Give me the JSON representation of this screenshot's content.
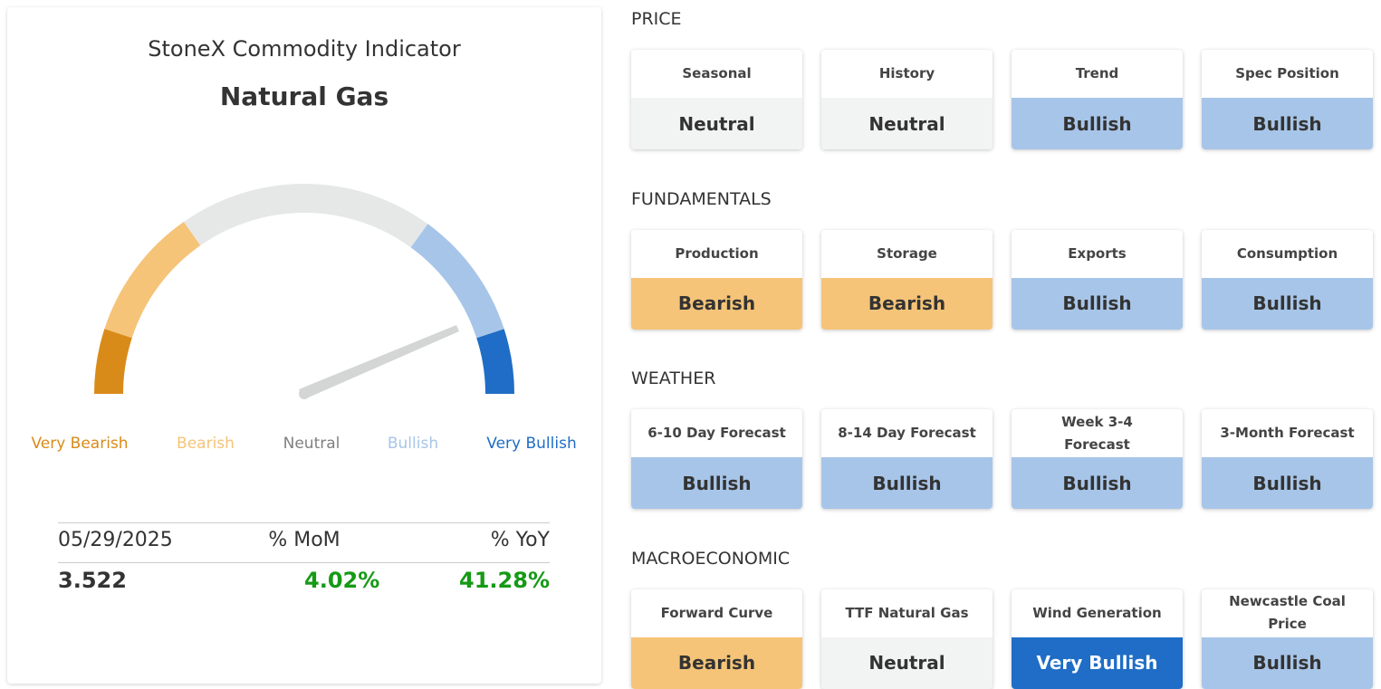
{
  "header": {
    "subtitle": "StoneX Commodity Indicator",
    "title": "Natural Gas"
  },
  "gauge": [
    {
      "label": "Very Bearish",
      "color": "#d98b1a",
      "label_color": "#d98b1a"
    },
    {
      "label": "Bearish",
      "color": "#f5c478",
      "label_color": "#f5c478"
    },
    {
      "label": "Neutral",
      "color": "#e6e8e7",
      "label_color": "#808080"
    },
    {
      "label": "Bullish",
      "color": "#a7c5e8",
      "label_color": "#a7c5e8"
    },
    {
      "label": "Very Bullish",
      "color": "#1f6dc6",
      "label_color": "#1f6dc6"
    }
  ],
  "summary": {
    "headers": [
      "05/29/2025",
      "% MoM",
      "% YoY"
    ],
    "values": [
      "3.522",
      "4.02%",
      "41.28%"
    ]
  },
  "sections": [
    {
      "title": "PRICE",
      "cards": [
        {
          "label": "Seasonal",
          "status": "Neutral",
          "color": "#f2f3f3"
        },
        {
          "label": "History",
          "status": "Neutral",
          "color": "#f2f3f3"
        },
        {
          "label": "Trend",
          "status": "Bullish",
          "color": "#a7c5e8"
        },
        {
          "label": "Spec Position",
          "status": "Bullish",
          "color": "#a7c5e8"
        }
      ]
    },
    {
      "title": "FUNDAMENTALS",
      "cards": [
        {
          "label": "Production",
          "status": "Bearish",
          "color": "#f5c478"
        },
        {
          "label": "Storage",
          "status": "Bearish",
          "color": "#f5c478"
        },
        {
          "label": "Exports",
          "status": "Bullish",
          "color": "#a7c5e8"
        },
        {
          "label": "Consumption",
          "status": "Bullish",
          "color": "#a7c5e8"
        }
      ]
    },
    {
      "title": "WEATHER",
      "cards": [
        {
          "label": "6-10 Day Forecast",
          "status": "Bullish",
          "color": "#a7c5e8"
        },
        {
          "label": "8-14 Day Forecast",
          "status": "Bullish",
          "color": "#a7c5e8"
        },
        {
          "label": "Week 3-4 Forecast",
          "status": "Bullish",
          "color": "#a7c5e8"
        },
        {
          "label": "3-Month Forecast",
          "status": "Bullish",
          "color": "#a7c5e8"
        }
      ]
    },
    {
      "title": "MACROECONOMIC",
      "cards": [
        {
          "label": "Forward Curve",
          "status": "Bearish",
          "color": "#f5c478"
        },
        {
          "label": "TTF Natural Gas",
          "status": "Neutral",
          "color": "#f2f3f3"
        },
        {
          "label": "Wind Generation",
          "status": "Very Bullish",
          "color": "#1f6dc6"
        },
        {
          "label": "Newcastle Coal Price",
          "status": "Bullish",
          "color": "#a7c5e8"
        }
      ]
    }
  ]
}
